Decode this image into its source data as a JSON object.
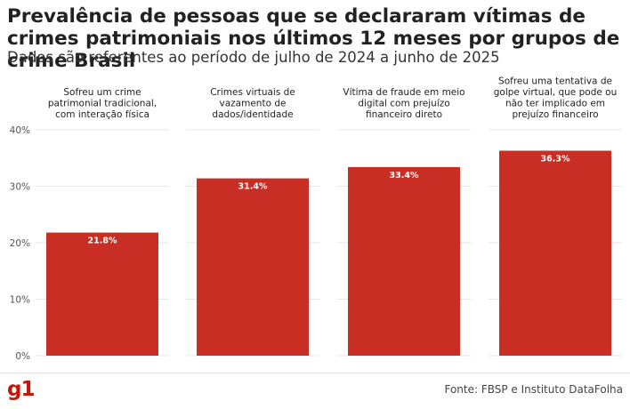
{
  "header": {
    "title": "Prevalência de pessoas que se declararam vítimas de crimes patrimoniais nos últimos 12 meses por grupos de crime Brasil",
    "subtitle": "Dados são referentes ao período de julho de 2024 a junho de 2025"
  },
  "footer": {
    "logo": "g1",
    "source": "Fonte: FBSP e Instituto DataFolha"
  },
  "colors": {
    "bar": "#c92e25",
    "grid": "#e6e6e6",
    "label": "#ffffff"
  },
  "chart_data": {
    "type": "bar",
    "facets": [
      {
        "title_lines": [
          "Sofreu um crime",
          "patrimonial tradicional,",
          "com interação física"
        ],
        "value": 21.8,
        "label": "21.8%"
      },
      {
        "title_lines": [
          "Crimes virtuais de",
          "vazamento de",
          "dados/identidade"
        ],
        "value": 31.4,
        "label": "31.4%"
      },
      {
        "title_lines": [
          "Vítima de fraude em meio",
          "digital com prejuízo",
          "financeiro direto"
        ],
        "value": 33.4,
        "label": "33.4%"
      },
      {
        "title_lines": [
          "Sofreu uma tentativa de",
          "golpe virtual, que pode ou",
          "não ter implicado em",
          "prejuízo financeiro"
        ],
        "value": 36.3,
        "label": "36.3%"
      }
    ],
    "yticks": [
      0,
      10,
      20,
      30,
      40
    ],
    "ytick_labels": [
      "0%",
      "10%",
      "20%",
      "30%",
      "40%"
    ],
    "ylim": [
      0,
      40
    ],
    "grid": true
  }
}
